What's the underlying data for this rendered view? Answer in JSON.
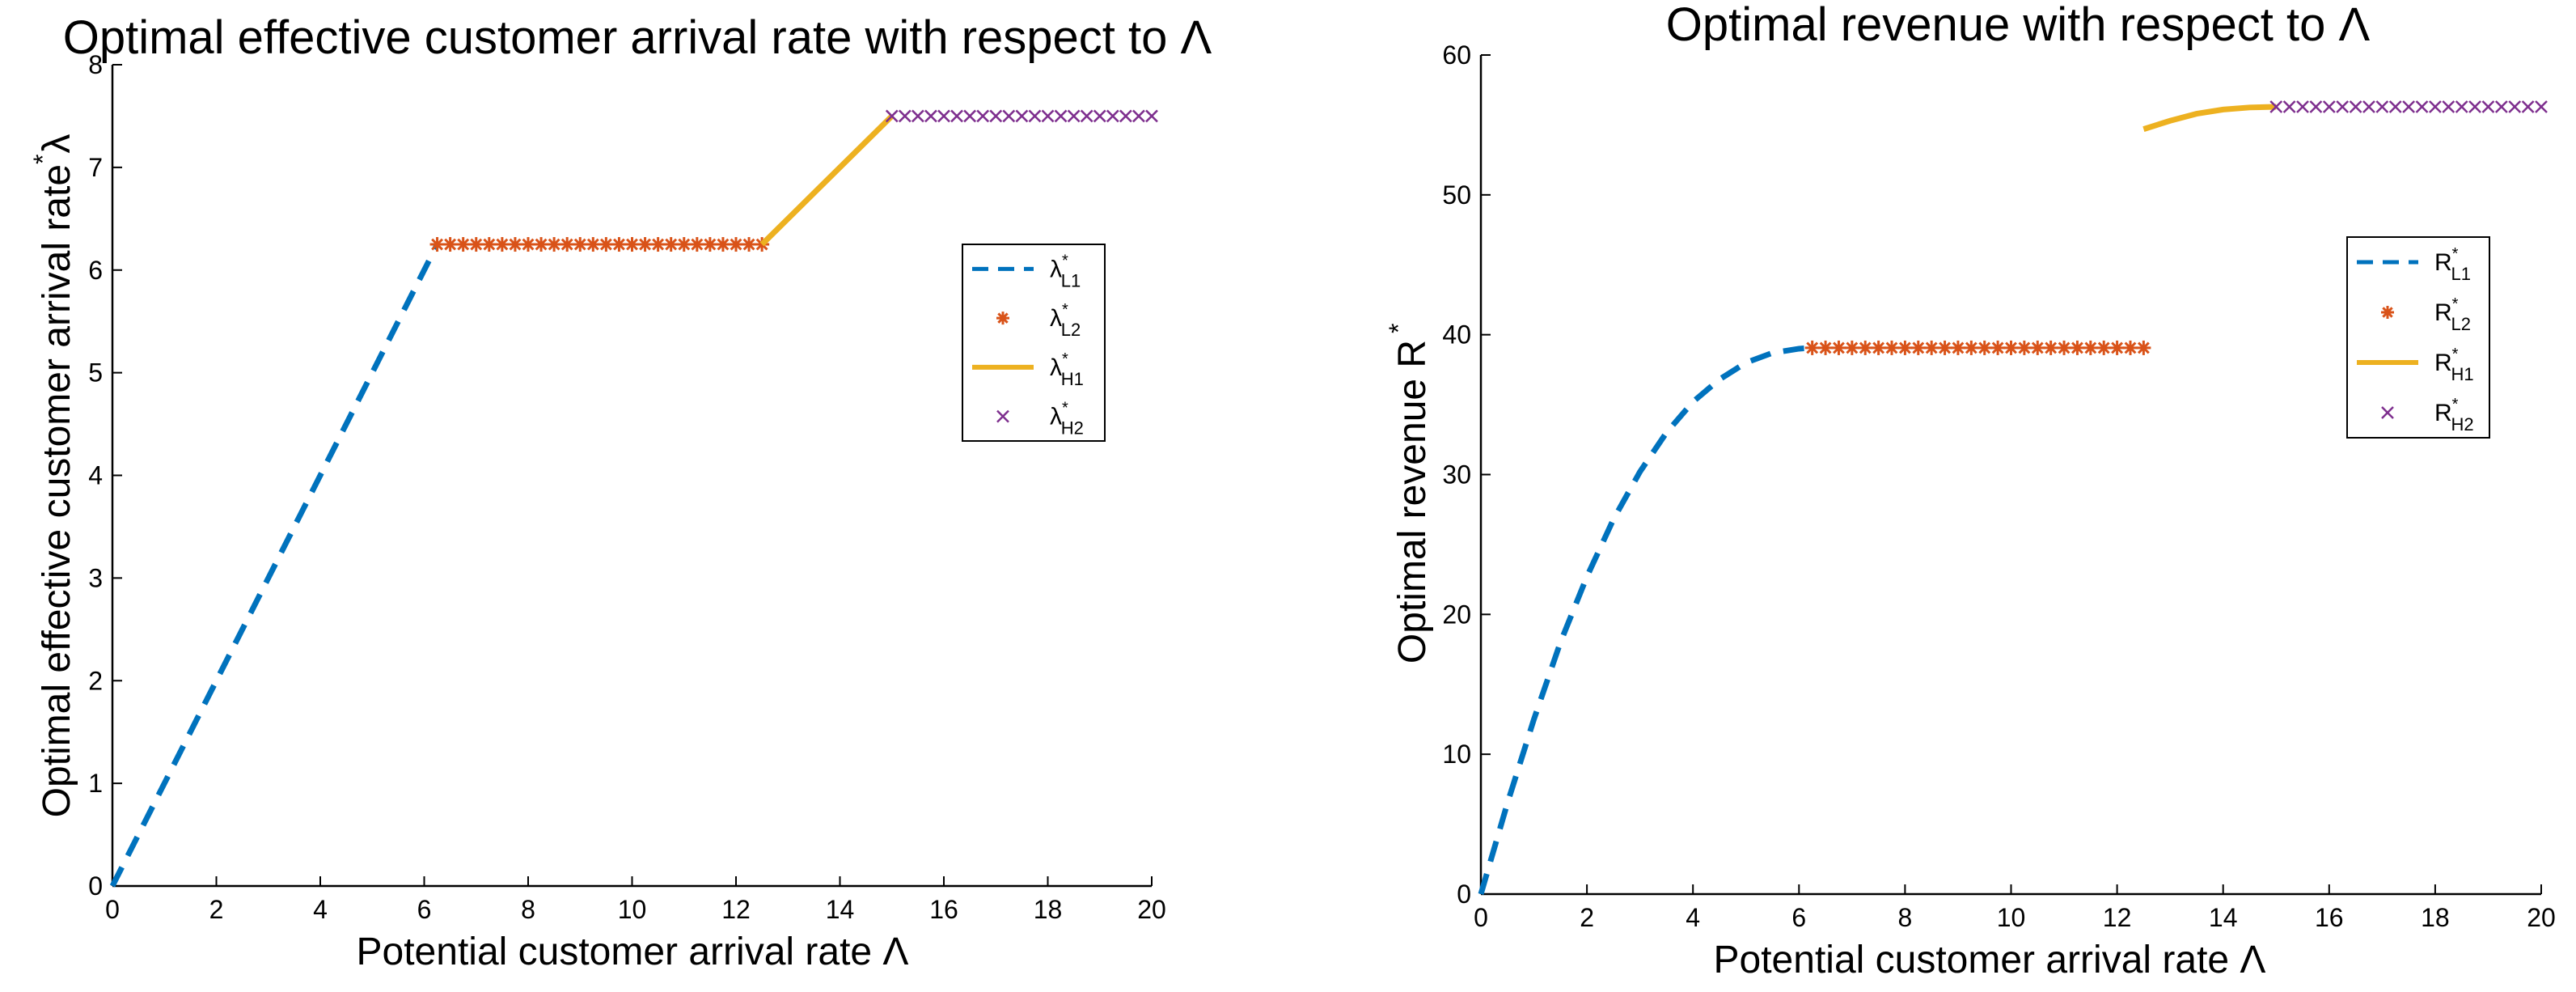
{
  "chart_data": [
    {
      "type": "line",
      "title": "Optimal effective customer arrival rate with respect to Λ",
      "xlabel": "Potential customer arrival rate Λ",
      "ylabel": "Optimal effective customer arrival rate λ",
      "ylabel_superscript": "*",
      "xlim": [
        0,
        20
      ],
      "ylim": [
        0,
        8
      ],
      "xticks": [
        0,
        2,
        4,
        6,
        8,
        10,
        12,
        14,
        16,
        18,
        20
      ],
      "yticks": [
        0,
        1,
        2,
        3,
        4,
        5,
        6,
        7,
        8
      ],
      "legend_location": "right",
      "series": [
        {
          "name": "λ*L1",
          "symbol": "λ",
          "sub": "L1",
          "style": "dashed",
          "color": "#0072BD",
          "x": [
            0,
            6.25
          ],
          "y": [
            0,
            6.25
          ]
        },
        {
          "name": "λ*L2",
          "symbol": "λ",
          "sub": "L2",
          "style": "asterisk",
          "color": "#D95319",
          "x_start": 6.25,
          "x_end": 12.5,
          "count": 26,
          "y_const": 6.25
        },
        {
          "name": "λ*H1",
          "symbol": "λ",
          "sub": "H1",
          "style": "solid",
          "color": "#EDB120",
          "x": [
            12.5,
            15
          ],
          "y": [
            6.25,
            7.5
          ]
        },
        {
          "name": "λ*H2",
          "symbol": "λ",
          "sub": "H2",
          "style": "cross",
          "color": "#7E2F8E",
          "x_start": 15,
          "x_end": 20,
          "count": 21,
          "y_const": 7.5
        }
      ]
    },
    {
      "type": "line",
      "title": "Optimal revenue with respect to Λ",
      "xlabel": "Potential customer arrival rate Λ",
      "ylabel": "Optimal revenue R",
      "ylabel_superscript": "*",
      "xlim": [
        0,
        20
      ],
      "ylim": [
        0,
        60
      ],
      "xticks": [
        0,
        2,
        4,
        6,
        8,
        10,
        12,
        14,
        16,
        18,
        20
      ],
      "yticks": [
        0,
        10,
        20,
        30,
        40,
        50,
        60
      ],
      "legend_location": "right",
      "series": [
        {
          "name": "R*L1",
          "symbol": "R",
          "sub": "L1",
          "style": "dashed",
          "color": "#0072BD",
          "x": [
            0,
            0.5,
            1,
            1.5,
            2,
            2.5,
            3,
            3.5,
            4,
            4.5,
            5,
            5.5,
            6,
            6.25
          ],
          "y": [
            0,
            6.5,
            12.5,
            18,
            22.7,
            26.8,
            30.2,
            33.0,
            35.2,
            36.8,
            38.0,
            38.7,
            39.0,
            39.06
          ]
        },
        {
          "name": "R*L2",
          "symbol": "R",
          "sub": "L2",
          "style": "asterisk",
          "color": "#D95319",
          "x_start": 6.25,
          "x_end": 12.5,
          "count": 26,
          "y_const": 39.06
        },
        {
          "name": "R*H1",
          "symbol": "R",
          "sub": "H1",
          "style": "solid",
          "color": "#EDB120",
          "x": [
            12.5,
            13,
            13.5,
            14,
            14.5,
            15
          ],
          "y": [
            54.7,
            55.3,
            55.8,
            56.1,
            56.25,
            56.3
          ]
        },
        {
          "name": "R*H2",
          "symbol": "R",
          "sub": "H2",
          "style": "cross",
          "color": "#7E2F8E",
          "x_start": 15,
          "x_end": 20,
          "count": 21,
          "y_const": 56.3
        }
      ]
    }
  ]
}
